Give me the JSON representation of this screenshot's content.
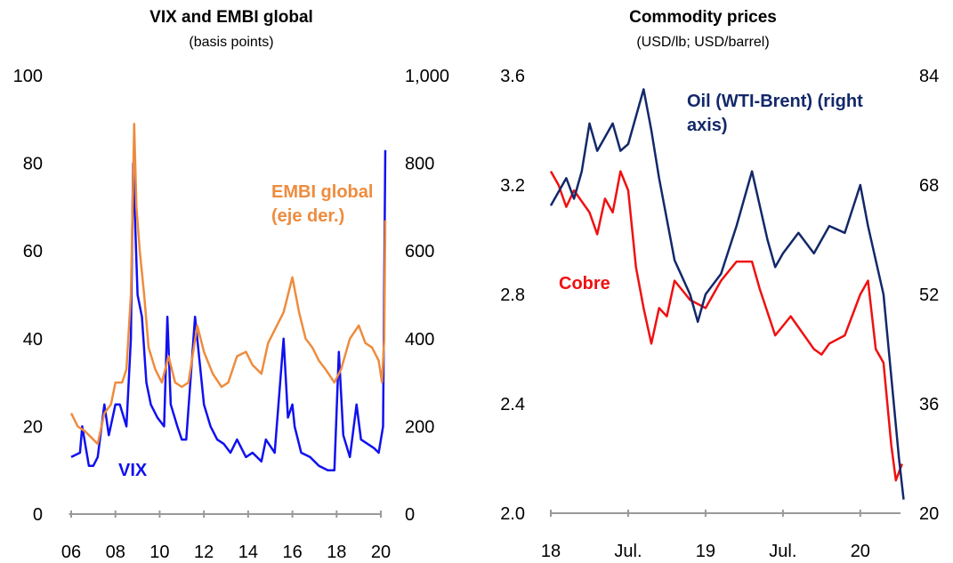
{
  "chart_data": [
    {
      "type": "line",
      "title": "VIX and EMBI global",
      "subtitle": "(basis points)",
      "xlim": [
        5.9,
        20.3
      ],
      "xticks": [
        {
          "value": 6,
          "label": "06"
        },
        {
          "value": 8,
          "label": "08"
        },
        10,
        12,
        14,
        16,
        18,
        20
      ],
      "ylim": [
        0,
        100
      ],
      "yticks": [
        0,
        20,
        40,
        60,
        80,
        100
      ],
      "y2lim": [
        0,
        1000
      ],
      "y2ticks": [
        0,
        200,
        400,
        600,
        800,
        {
          "value": 1000,
          "label": "1,000"
        }
      ],
      "series": [
        {
          "name": "VIX",
          "color": "#1010f0",
          "axis": "y",
          "x": [
            6.0,
            6.4,
            6.5,
            6.8,
            7.0,
            7.2,
            7.5,
            7.7,
            8.0,
            8.2,
            8.5,
            8.7,
            8.8,
            8.9,
            9.0,
            9.2,
            9.4,
            9.6,
            9.9,
            10.2,
            10.35,
            10.5,
            10.8,
            11.0,
            11.2,
            11.6,
            11.8,
            12.0,
            12.3,
            12.6,
            12.9,
            13.2,
            13.5,
            13.9,
            14.2,
            14.6,
            14.8,
            15.2,
            15.6,
            15.8,
            16.0,
            16.1,
            16.4,
            16.8,
            17.2,
            17.6,
            17.9,
            18.1,
            18.3,
            18.6,
            18.9,
            19.1,
            19.4,
            19.7,
            19.9,
            20.1,
            20.2
          ],
          "values": [
            13,
            14,
            20,
            11,
            11,
            13,
            25,
            18,
            25,
            25,
            20,
            40,
            80,
            65,
            50,
            45,
            30,
            25,
            22,
            20,
            45,
            25,
            20,
            17,
            17,
            45,
            35,
            25,
            20,
            17,
            16,
            14,
            17,
            13,
            14,
            12,
            17,
            14,
            40,
            22,
            25,
            20,
            14,
            13,
            11,
            10,
            10,
            37,
            18,
            13,
            25,
            17,
            16,
            15,
            14,
            20,
            83
          ]
        },
        {
          "name": "EMBI global (eje der.)",
          "color": "#ee8c3e",
          "axis": "y2",
          "x": [
            6.0,
            6.3,
            6.6,
            6.9,
            7.2,
            7.5,
            7.8,
            8.0,
            8.3,
            8.5,
            8.7,
            8.85,
            8.95,
            9.1,
            9.3,
            9.5,
            9.8,
            10.1,
            10.4,
            10.7,
            11.0,
            11.3,
            11.7,
            12.0,
            12.4,
            12.8,
            13.1,
            13.5,
            13.9,
            14.2,
            14.6,
            14.9,
            15.2,
            15.6,
            16.0,
            16.3,
            16.6,
            16.9,
            17.2,
            17.5,
            17.9,
            18.2,
            18.6,
            19.0,
            19.3,
            19.6,
            19.9,
            20.05,
            20.15,
            20.2
          ],
          "values": [
            230,
            200,
            190,
            175,
            160,
            230,
            250,
            300,
            300,
            330,
            500,
            890,
            700,
            600,
            500,
            380,
            330,
            300,
            360,
            300,
            290,
            300,
            430,
            370,
            320,
            290,
            300,
            360,
            370,
            340,
            320,
            390,
            420,
            460,
            540,
            460,
            400,
            380,
            350,
            330,
            300,
            330,
            400,
            430,
            390,
            380,
            350,
            300,
            400,
            670
          ]
        }
      ]
    },
    {
      "type": "line",
      "title": "Commodity prices",
      "subtitle": "(USD/lb; USD/barrel)",
      "xlim": [
        18,
        20.3
      ],
      "xticks": [
        18,
        {
          "value": 18.5,
          "label": "Jul."
        },
        19,
        {
          "value": 19.5,
          "label": "Jul."
        },
        20
      ],
      "ylim": [
        2.0,
        3.6
      ],
      "yticks": [
        {
          "value": 2.0,
          "label": "2.0"
        },
        2.4,
        2.8,
        3.2,
        3.6
      ],
      "y2lim": [
        20,
        84
      ],
      "y2ticks": [
        20,
        36,
        52,
        68,
        84
      ],
      "series": [
        {
          "name": "Cobre",
          "color": "#f01010",
          "axis": "y",
          "x": [
            18.0,
            18.05,
            18.1,
            18.15,
            18.25,
            18.3,
            18.35,
            18.4,
            18.45,
            18.5,
            18.55,
            18.6,
            18.65,
            18.7,
            18.75,
            18.8,
            18.9,
            19.0,
            19.1,
            19.2,
            19.3,
            19.35,
            19.45,
            19.55,
            19.6,
            19.7,
            19.75,
            19.8,
            19.9,
            20.0,
            20.05,
            20.1,
            20.15,
            20.2,
            20.23,
            20.27
          ],
          "values": [
            3.25,
            3.2,
            3.12,
            3.18,
            3.1,
            3.02,
            3.15,
            3.1,
            3.25,
            3.18,
            2.9,
            2.75,
            2.62,
            2.75,
            2.72,
            2.85,
            2.78,
            2.75,
            2.85,
            2.92,
            2.92,
            2.82,
            2.65,
            2.72,
            2.68,
            2.6,
            2.58,
            2.62,
            2.65,
            2.8,
            2.85,
            2.6,
            2.55,
            2.25,
            2.12,
            2.18
          ]
        },
        {
          "name": "Oil (WTI-Brent) (right axis)",
          "color": "#13286a",
          "axis": "y2",
          "x": [
            18.0,
            18.05,
            18.1,
            18.15,
            18.2,
            18.25,
            18.3,
            18.4,
            18.45,
            18.5,
            18.6,
            18.65,
            18.7,
            18.8,
            18.9,
            18.95,
            19.0,
            19.1,
            19.2,
            19.25,
            19.3,
            19.4,
            19.45,
            19.5,
            19.6,
            19.7,
            19.8,
            19.9,
            20.0,
            20.05,
            20.1,
            20.15,
            20.2,
            20.25,
            20.28
          ],
          "values": [
            65,
            67,
            69,
            66,
            70,
            77,
            73,
            77,
            73,
            74,
            82,
            76,
            69,
            57,
            52,
            48,
            52,
            55,
            62,
            66,
            70,
            60,
            56,
            58,
            61,
            58,
            62,
            61,
            68,
            62,
            57,
            52,
            40,
            28,
            22
          ]
        }
      ]
    }
  ]
}
